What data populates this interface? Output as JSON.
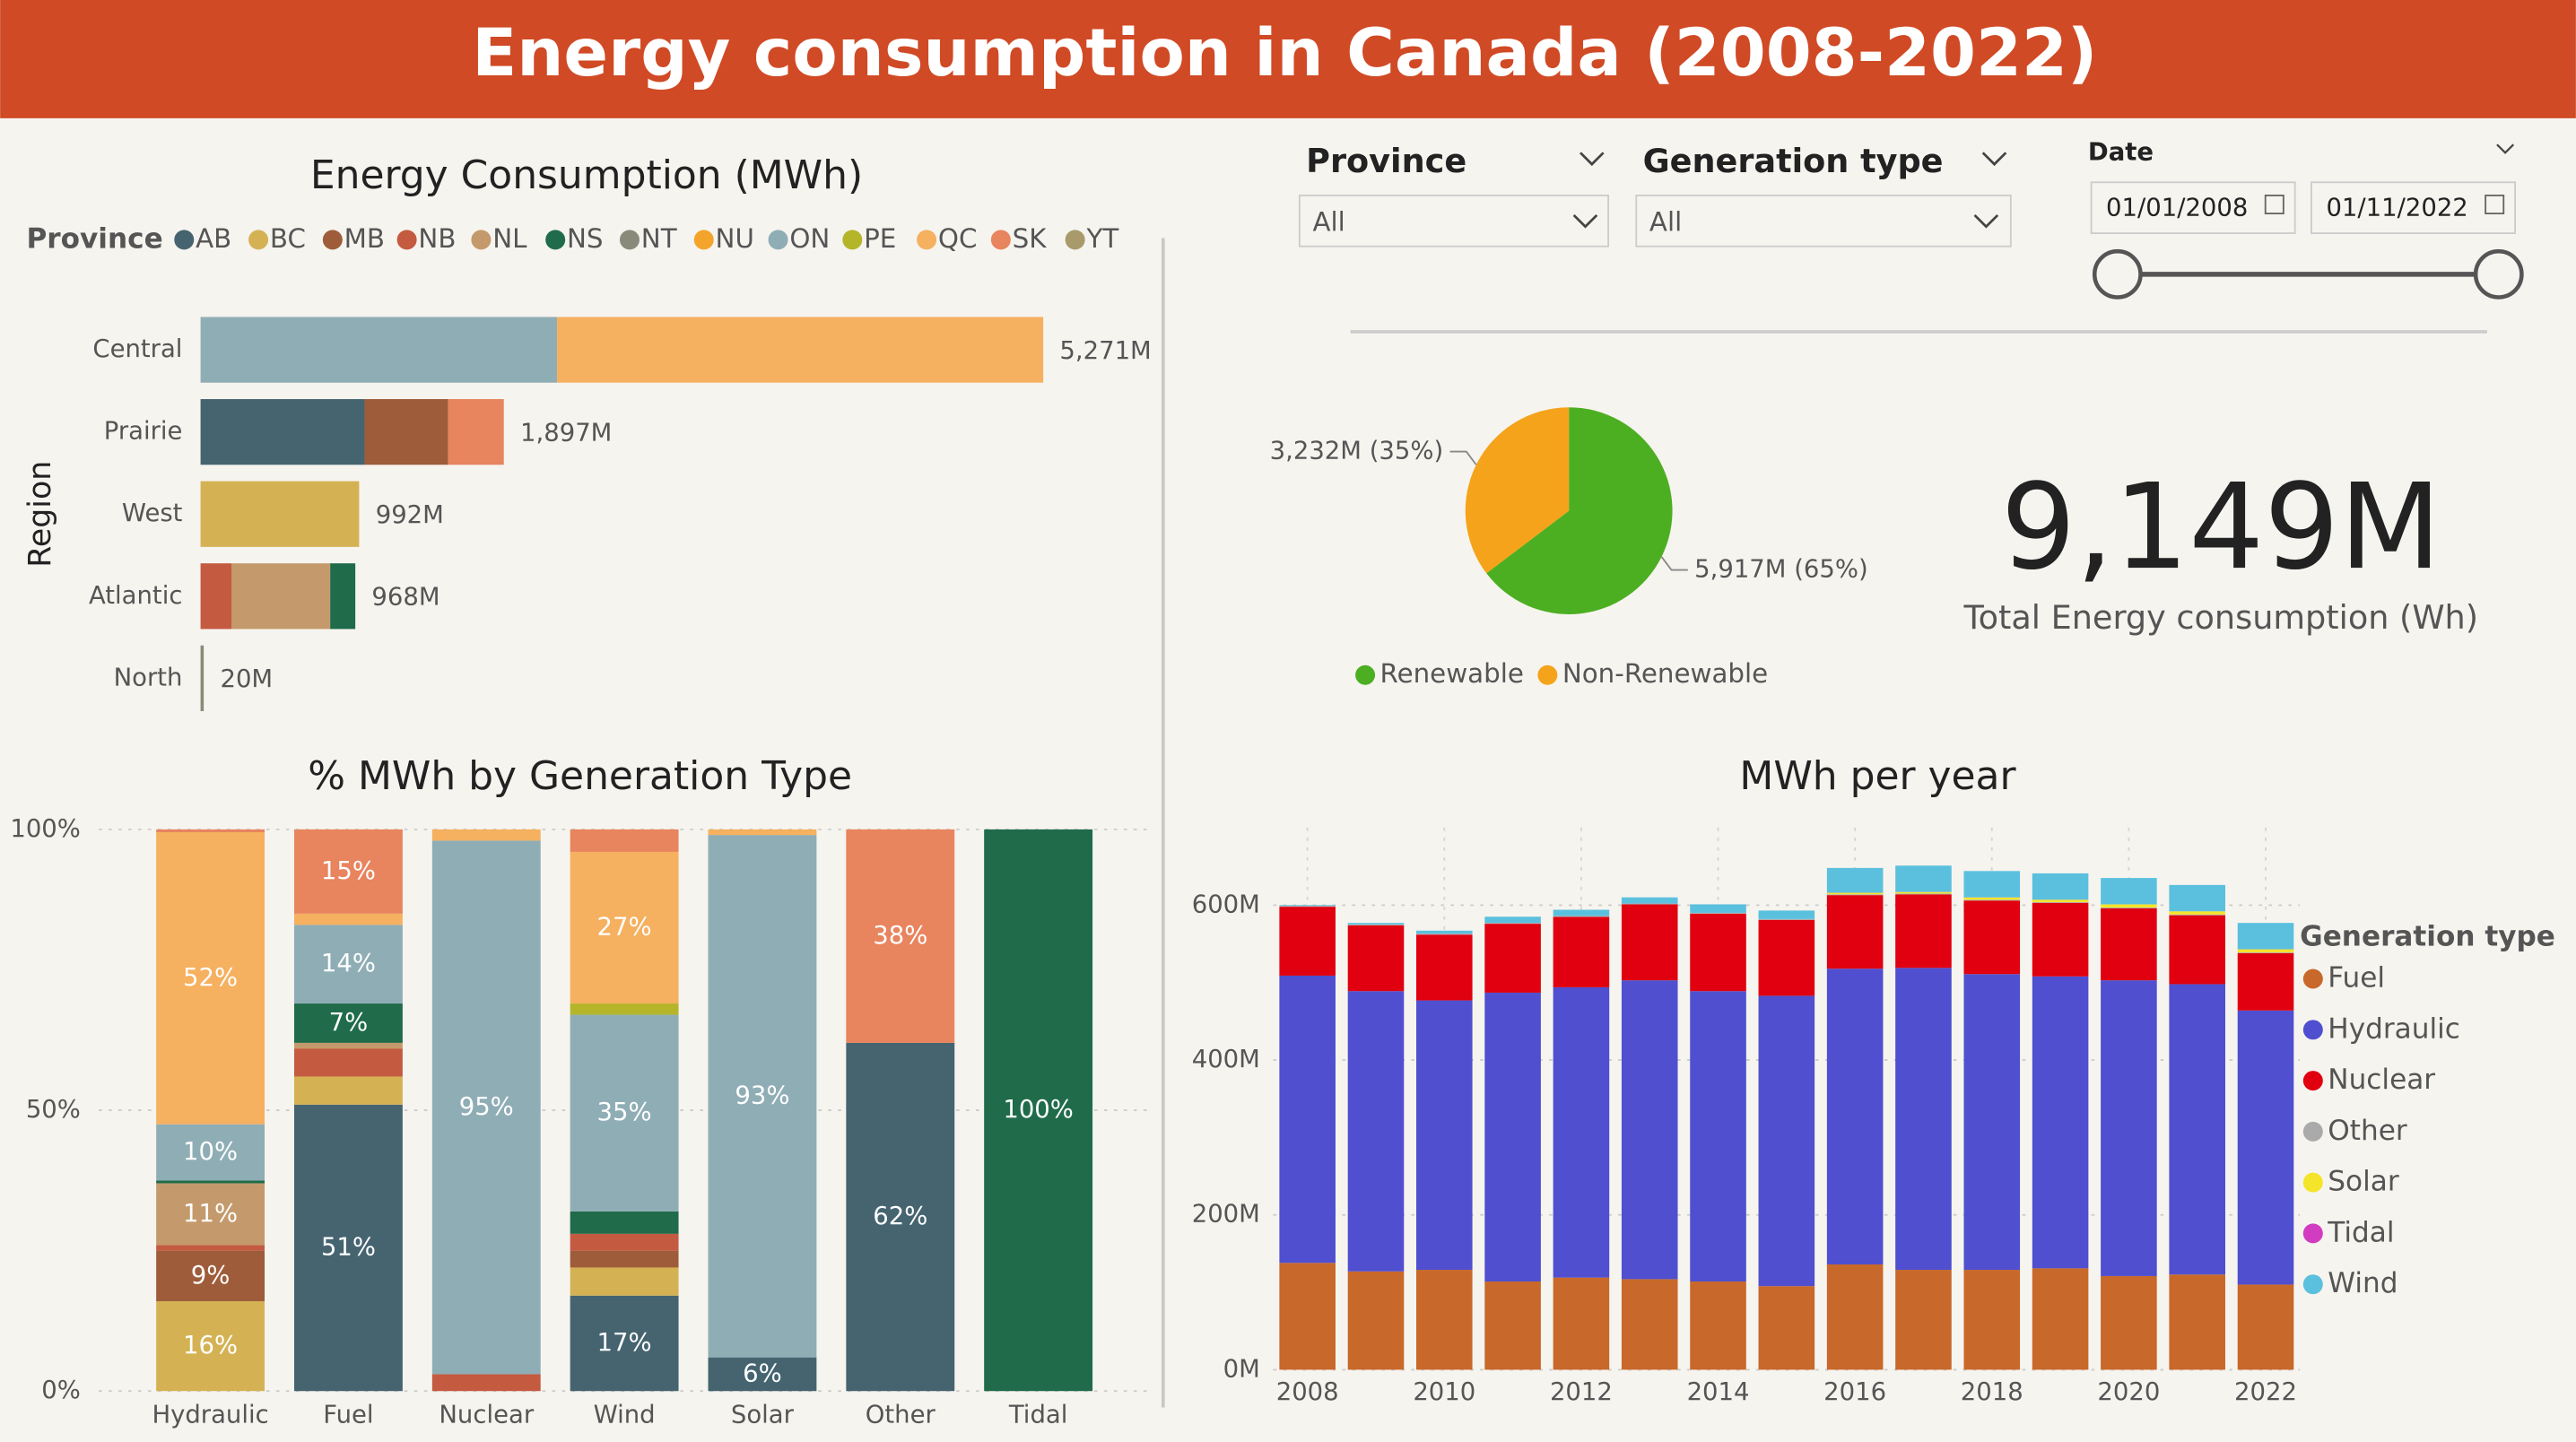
{
  "header": {
    "title": "Energy consumption in Canada (2008-2022)"
  },
  "filters": {
    "province": {
      "label": "Province",
      "value": "All"
    },
    "generation_type": {
      "label": "Generation type",
      "value": "All"
    },
    "date": {
      "label": "Date",
      "start": "01/01/2008",
      "end": "01/11/2022"
    }
  },
  "kpi": {
    "value": "9,149M",
    "label": "Total Energy consumption (Wh)"
  },
  "chart_data": [
    {
      "type": "hbar_stacked",
      "title": "Energy Consumption (MWh)",
      "y_label": "Region",
      "legend_title": "Province",
      "categories": [
        "Central",
        "Prairie",
        "West",
        "Atlantic",
        "North"
      ],
      "series": [
        {
          "name": "AB",
          "color": "#456470",
          "values": [
            null,
            1026,
            null,
            null,
            null
          ]
        },
        {
          "name": "BC",
          "color": "#d4b254",
          "values": [
            null,
            null,
            992,
            null,
            null
          ]
        },
        {
          "name": "MB",
          "color": "#9e5c3a",
          "values": [
            null,
            523,
            null,
            null,
            null
          ]
        },
        {
          "name": "NB",
          "color": "#c45a40",
          "values": [
            null,
            null,
            null,
            195,
            null
          ]
        },
        {
          "name": "NL",
          "color": "#c49a6c",
          "values": [
            null,
            null,
            null,
            616,
            null
          ]
        },
        {
          "name": "NS",
          "color": "#1f6b4a",
          "values": [
            null,
            null,
            null,
            157,
            null
          ]
        },
        {
          "name": "NT",
          "color": "#8a8a7a",
          "values": [
            null,
            null,
            null,
            null,
            20
          ]
        },
        {
          "name": "NU",
          "color": "#f2a52a",
          "values": [
            null,
            null,
            null,
            null,
            null
          ]
        },
        {
          "name": "ON",
          "color": "#8fadb5",
          "values": [
            2230,
            null,
            null,
            null,
            null
          ]
        },
        {
          "name": "PE",
          "color": "#b5b52a",
          "values": [
            null,
            null,
            null,
            null,
            null
          ]
        },
        {
          "name": "QC",
          "color": "#f5b060",
          "values": [
            3041,
            null,
            null,
            null,
            null
          ]
        },
        {
          "name": "SK",
          "color": "#e8845e",
          "values": [
            null,
            348,
            null,
            null,
            null
          ]
        },
        {
          "name": "YT",
          "color": "#a89a6a",
          "values": [
            null,
            null,
            null,
            null,
            null
          ]
        }
      ],
      "total_labels": [
        "5,271M",
        "1,897M",
        "992M",
        "968M",
        "20M"
      ]
    },
    {
      "type": "bar_stacked_percent",
      "title": "% MWh by Generation Type",
      "categories": [
        "Hydraulic",
        "Fuel",
        "Nuclear",
        "Wind",
        "Solar",
        "Other",
        "Tidal"
      ],
      "ylim": [
        0,
        100
      ],
      "yticks": [
        {
          "value": 0,
          "label": "0%"
        },
        {
          "value": 50,
          "label": "50%"
        },
        {
          "value": 100,
          "label": "100%"
        }
      ],
      "grid": true,
      "series": [
        {
          "color": "#456470",
          "values": [
            null,
            51,
            null,
            17,
            6,
            62,
            null
          ],
          "value_labels": [
            null,
            "51%",
            null,
            "17%",
            "6%",
            "62%",
            null
          ]
        },
        {
          "color": "#d4b254",
          "values": [
            16,
            5,
            null,
            5,
            null,
            null,
            null
          ],
          "value_labels": [
            "16%",
            null,
            null,
            null,
            null,
            null,
            null
          ]
        },
        {
          "color": "#9e5c3a",
          "values": [
            9,
            null,
            null,
            3,
            null,
            null,
            null
          ],
          "value_labels": [
            "9%",
            null,
            null,
            null,
            null,
            null,
            null
          ]
        },
        {
          "color": "#c45a40",
          "values": [
            1,
            5,
            3,
            3,
            null,
            null,
            null
          ]
        },
        {
          "color": "#c49a6c",
          "values": [
            11,
            1,
            null,
            null,
            null,
            null,
            null
          ],
          "value_labels": [
            "11%",
            null,
            null,
            null,
            null,
            null,
            null
          ]
        },
        {
          "color": "#1f6b4a",
          "values": [
            0.5,
            7,
            null,
            4,
            null,
            null,
            100
          ],
          "value_labels": [
            null,
            "7%",
            null,
            null,
            null,
            null,
            "100%"
          ]
        },
        {
          "color": "#8fadb5",
          "values": [
            10,
            14,
            95,
            35,
            93,
            null,
            null
          ],
          "value_labels": [
            "10%",
            "14%",
            "95%",
            "35%",
            "93%",
            null,
            null
          ]
        },
        {
          "color": "#b5b52a",
          "values": [
            null,
            null,
            null,
            2,
            null,
            null,
            null
          ]
        },
        {
          "color": "#f5b060",
          "values": [
            52,
            2,
            2,
            27,
            1,
            null,
            null
          ],
          "value_labels": [
            "52%",
            null,
            null,
            "27%",
            null,
            null,
            null
          ]
        },
        {
          "color": "#e8845e",
          "values": [
            0.5,
            15,
            null,
            4,
            null,
            38,
            null
          ],
          "value_labels": [
            null,
            "15%",
            null,
            null,
            null,
            "38%",
            null
          ]
        }
      ]
    },
    {
      "type": "pie",
      "categories": [
        "Renewable",
        "Non-Renewable"
      ],
      "values": [
        5917,
        3232
      ],
      "value_labels": [
        "5,917M (65%)",
        "3,232M (35%)"
      ],
      "colors": [
        "#4caf22",
        "#f5a31a"
      ]
    },
    {
      "type": "bar_stacked",
      "title": "MWh per year",
      "legend_title": "Generation type",
      "x": [
        2008,
        2009,
        2010,
        2011,
        2012,
        2013,
        2014,
        2015,
        2016,
        2017,
        2018,
        2019,
        2020,
        2021,
        2022
      ],
      "xlim": [
        2007.5,
        2022.5
      ],
      "xticks": [
        2008,
        2010,
        2012,
        2014,
        2016,
        2018,
        2020,
        2022
      ],
      "ylim": [
        0,
        700
      ],
      "yticks": [
        {
          "value": 0,
          "label": "0M"
        },
        {
          "value": 200,
          "label": "200M"
        },
        {
          "value": 400,
          "label": "400M"
        },
        {
          "value": 600,
          "label": "600M"
        }
      ],
      "grid": true,
      "series": [
        {
          "name": "Fuel",
          "color": "#c8682a",
          "values": [
            138,
            127,
            129,
            114,
            119,
            117,
            114,
            108,
            136,
            129,
            129,
            131,
            121,
            123,
            110
          ]
        },
        {
          "name": "Hydraulic",
          "color": "#4f4fcf",
          "values": [
            371,
            362,
            348,
            373,
            375,
            386,
            375,
            375,
            382,
            390,
            382,
            377,
            382,
            375,
            354
          ]
        },
        {
          "name": "Nuclear",
          "color": "#e0000f",
          "values": [
            89,
            85,
            85,
            89,
            91,
            98,
            100,
            98,
            95,
            95,
            95,
            95,
            93,
            89,
            74
          ]
        },
        {
          "name": "Other",
          "color": "#aaaaaa",
          "values": [
            1,
            1,
            1,
            1,
            1,
            1,
            1,
            1,
            1,
            1,
            1,
            1,
            1,
            1,
            1
          ]
        },
        {
          "name": "Solar",
          "color": "#f5e52a",
          "values": [
            0,
            0,
            0,
            0,
            0,
            0,
            0,
            0,
            2,
            2,
            3,
            3,
            4,
            4,
            4
          ]
        },
        {
          "name": "Tidal",
          "color": "#d23cc0",
          "values": [
            0.1,
            0.1,
            0.1,
            0.1,
            0.1,
            0.1,
            0.1,
            0.1,
            0.1,
            0.1,
            0.1,
            0.1,
            0.1,
            0.1,
            0.1
          ]
        },
        {
          "name": "Wind",
          "color": "#5bc0de",
          "values": [
            1,
            2,
            4,
            8,
            8,
            8,
            11,
            11,
            32,
            34,
            34,
            34,
            34,
            34,
            34
          ]
        }
      ]
    }
  ]
}
